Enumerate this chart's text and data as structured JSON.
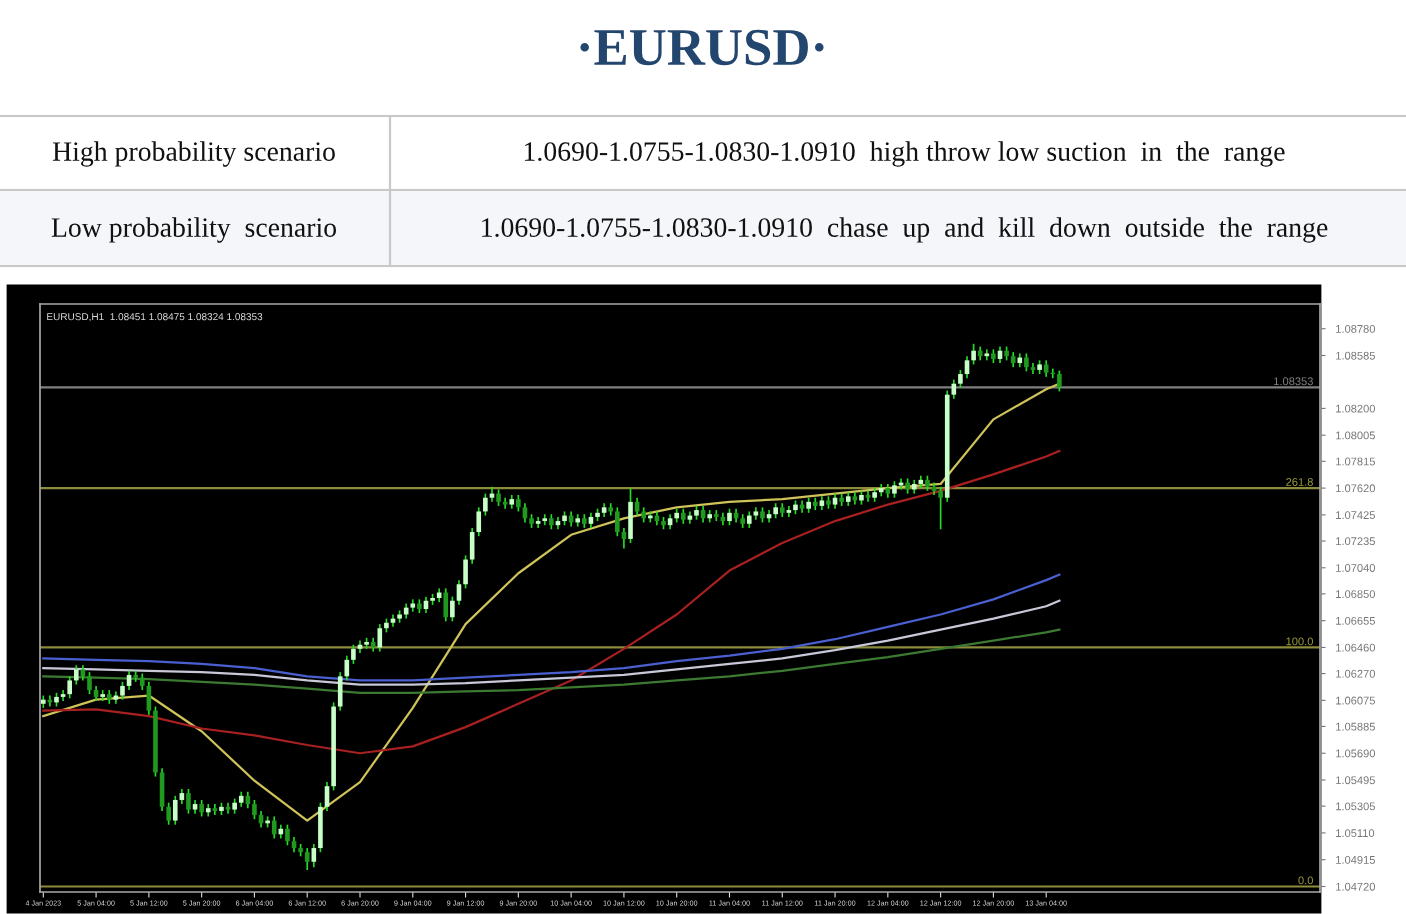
{
  "chart_data": {
    "type": "candlestick",
    "title": "·EURUSD·",
    "annotations": [
      "High probability scenario",
      "1.0690-1.0755-1.0830-1.0910  high throw low suction  in  the  range",
      "Low probability  scenario",
      "1.0690-1.0755-1.0830-1.0910  chase  up  and  kill  down  outside  the  range",
      "EURUSD,H1  1.08451 1.08475 1.08324 1.08353",
      {
        "text": "261.8",
        "y": 1.0762
      },
      {
        "text": "100.0",
        "y": 1.0646
      },
      {
        "text": "0.0",
        "y": 1.0472
      }
    ],
    "categories": [
      "4 Jan 2023",
      null,
      null,
      null,
      null,
      null,
      null,
      null,
      "5 Jan 04:00",
      null,
      null,
      null,
      null,
      null,
      null,
      null,
      "5 Jan 12:00",
      null,
      null,
      null,
      null,
      null,
      null,
      null,
      "5 Jan 20:00",
      null,
      null,
      null,
      null,
      null,
      null,
      null,
      "6 Jan 04:00",
      null,
      null,
      null,
      null,
      null,
      null,
      null,
      "6 Jan 12:00",
      null,
      null,
      null,
      null,
      null,
      null,
      null,
      "6 Jan 20:00",
      null,
      null,
      null,
      null,
      null,
      null,
      null,
      "9 Jan 04:00",
      null,
      null,
      null,
      null,
      null,
      null,
      null,
      "9 Jan 12:00",
      null,
      null,
      null,
      null,
      null,
      null,
      null,
      "9 Jan 20:00",
      null,
      null,
      null,
      null,
      null,
      null,
      null,
      "10 Jan 04:00",
      null,
      null,
      null,
      null,
      null,
      null,
      null,
      "10 Jan 12:00",
      null,
      null,
      null,
      null,
      null,
      null,
      null,
      "10 Jan 20:00",
      null,
      null,
      null,
      null,
      null,
      null,
      null,
      "11 Jan 04:00",
      null,
      null,
      null,
      null,
      null,
      null,
      null,
      "11 Jan 12:00",
      null,
      null,
      null,
      null,
      null,
      null,
      null,
      "11 Jan 20:00",
      null,
      null,
      null,
      null,
      null,
      null,
      null,
      "12 Jan 04:00",
      null,
      null,
      null,
      null,
      null,
      null,
      null,
      "12 Jan 12:00",
      null,
      null,
      null,
      null,
      null,
      null,
      null,
      "12 Jan 20:00",
      null,
      null,
      null,
      null,
      null,
      null,
      null,
      "13 Jan 04:00",
      null,
      null,
      null,
      null,
      null,
      null,
      null,
      null,
      null,
      null,
      null,
      null,
      null,
      null,
      null,
      null,
      null,
      null,
      null,
      null,
      null,
      null,
      null,
      null,
      null,
      null,
      null,
      null,
      null,
      null,
      null,
      null,
      null,
      null,
      null,
      null,
      null,
      null,
      null,
      null,
      null
    ],
    "ohlc": [
      [
        1.0605,
        1.0611,
        1.0602,
        1.0608
      ],
      [
        1.0608,
        1.0611,
        1.0603,
        1.0606
      ],
      [
        1.0606,
        1.0613,
        1.0603,
        1.061
      ],
      [
        1.061,
        1.0615,
        1.0607,
        1.0612
      ],
      [
        1.0612,
        1.0625,
        1.0609,
        1.0622
      ],
      [
        1.0622,
        1.0633,
        1.0619,
        1.063
      ],
      [
        1.063,
        1.0633,
        1.0622,
        1.0625
      ],
      [
        1.0625,
        1.0628,
        1.0612,
        1.0615
      ],
      [
        1.0615,
        1.0618,
        1.0607,
        1.061
      ],
      [
        1.061,
        1.0615,
        1.0607,
        1.0612
      ],
      [
        1.0612,
        1.0615,
        1.0605,
        1.0608
      ],
      [
        1.0608,
        1.0614,
        1.0605,
        1.0611
      ],
      [
        1.0611,
        1.0621,
        1.0608,
        1.0618
      ],
      [
        1.0618,
        1.0629,
        1.0615,
        1.0626
      ],
      [
        1.0626,
        1.0629,
        1.0621,
        1.0624
      ],
      [
        1.0624,
        1.0627,
        1.0615,
        1.0618
      ],
      [
        1.0618,
        1.0621,
        1.0597,
        1.06
      ],
      [
        1.06,
        1.0603,
        1.0552,
        1.0555
      ],
      [
        1.0555,
        1.0558,
        1.0527,
        1.053
      ],
      [
        1.053,
        1.0533,
        1.0517,
        1.052
      ],
      [
        1.052,
        1.0538,
        1.0517,
        1.0535
      ],
      [
        1.0535,
        1.0543,
        1.0532,
        1.054
      ],
      [
        1.054,
        1.0543,
        1.0525,
        1.0528
      ],
      [
        1.0528,
        1.0535,
        1.0525,
        1.0532
      ],
      [
        1.0532,
        1.0535,
        1.0523,
        1.0526
      ],
      [
        1.0526,
        1.0532,
        1.0523,
        1.0529
      ],
      [
        1.0529,
        1.0532,
        1.0524,
        1.0527
      ],
      [
        1.0527,
        1.0533,
        1.0524,
        1.053
      ],
      [
        1.053,
        1.0533,
        1.0525,
        1.0528
      ],
      [
        1.0528,
        1.0536,
        1.0525,
        1.0533
      ],
      [
        1.0533,
        1.0541,
        1.053,
        1.0538
      ],
      [
        1.0538,
        1.0541,
        1.0529,
        1.0532
      ],
      [
        1.0532,
        1.0535,
        1.0521,
        1.0524
      ],
      [
        1.0524,
        1.0527,
        1.0515,
        1.0518
      ],
      [
        1.0518,
        1.0523,
        1.0515,
        1.052
      ],
      [
        1.052,
        1.0523,
        1.0507,
        1.051
      ],
      [
        1.051,
        1.0517,
        1.0507,
        1.0514
      ],
      [
        1.0514,
        1.0517,
        1.0502,
        1.0505
      ],
      [
        1.0505,
        1.0508,
        1.0497,
        1.05
      ],
      [
        1.05,
        1.0503,
        1.0494,
        1.0497
      ],
      [
        1.0497,
        1.05,
        1.0484,
        1.049
      ],
      [
        1.049,
        1.0503,
        1.0486,
        1.05
      ],
      [
        1.05,
        1.0533,
        1.0497,
        1.053
      ],
      [
        1.053,
        1.0548,
        1.0527,
        1.0545
      ],
      [
        1.0545,
        1.0606,
        1.0542,
        1.0603
      ],
      [
        1.0603,
        1.0628,
        1.06,
        1.0625
      ],
      [
        1.0625,
        1.064,
        1.0622,
        1.0637
      ],
      [
        1.0637,
        1.0648,
        1.0634,
        1.0645
      ],
      [
        1.0645,
        1.0651,
        1.0642,
        1.0648
      ],
      [
        1.0648,
        1.0653,
        1.0645,
        1.065
      ],
      [
        1.065,
        1.0653,
        1.0643,
        1.0646
      ],
      [
        1.0646,
        1.0663,
        1.0643,
        1.066
      ],
      [
        1.066,
        1.0667,
        1.0657,
        1.0664
      ],
      [
        1.0664,
        1.067,
        1.0661,
        1.0667
      ],
      [
        1.0667,
        1.0673,
        1.0664,
        1.067
      ],
      [
        1.067,
        1.0678,
        1.0667,
        1.0675
      ],
      [
        1.0675,
        1.0681,
        1.0672,
        1.0678
      ],
      [
        1.0678,
        1.0681,
        1.0671,
        1.0674
      ],
      [
        1.0674,
        1.0683,
        1.0671,
        1.068
      ],
      [
        1.068,
        1.0685,
        1.0677,
        1.0682
      ],
      [
        1.0682,
        1.0689,
        1.0679,
        1.0686
      ],
      [
        1.0686,
        1.0689,
        1.0665,
        1.0668
      ],
      [
        1.0668,
        1.0683,
        1.0665,
        1.068
      ],
      [
        1.068,
        1.0695,
        1.0677,
        1.0692
      ],
      [
        1.0692,
        1.0713,
        1.0689,
        1.071
      ],
      [
        1.071,
        1.0733,
        1.0707,
        1.073
      ],
      [
        1.073,
        1.0748,
        1.0727,
        1.0745
      ],
      [
        1.0745,
        1.0758,
        1.0742,
        1.0755
      ],
      [
        1.0755,
        1.0763,
        1.0752,
        1.0758
      ],
      [
        1.0758,
        1.0761,
        1.0749,
        1.0752
      ],
      [
        1.0752,
        1.0755,
        1.0747,
        1.075
      ],
      [
        1.075,
        1.0757,
        1.0747,
        1.0754
      ],
      [
        1.0754,
        1.0757,
        1.0745,
        1.0748
      ],
      [
        1.0748,
        1.0751,
        1.0737,
        1.074
      ],
      [
        1.074,
        1.0743,
        1.0733,
        1.0736
      ],
      [
        1.0736,
        1.0741,
        1.0733,
        1.0738
      ],
      [
        1.0738,
        1.0743,
        1.0735,
        1.074
      ],
      [
        1.074,
        1.0743,
        1.0732,
        1.0735
      ],
      [
        1.0735,
        1.0741,
        1.0732,
        1.0738
      ],
      [
        1.0738,
        1.0745,
        1.0735,
        1.0742
      ],
      [
        1.0742,
        1.0745,
        1.0734,
        1.0737
      ],
      [
        1.0737,
        1.0743,
        1.0734,
        1.074
      ],
      [
        1.074,
        1.0743,
        1.0733,
        1.0736
      ],
      [
        1.0736,
        1.0744,
        1.0733,
        1.0741
      ],
      [
        1.0741,
        1.0747,
        1.0738,
        1.0744
      ],
      [
        1.0744,
        1.0751,
        1.0741,
        1.0748
      ],
      [
        1.0748,
        1.0751,
        1.0742,
        1.0745
      ],
      [
        1.0745,
        1.0748,
        1.0727,
        1.073
      ],
      [
        1.073,
        1.0733,
        1.0718,
        1.0725
      ],
      [
        1.0725,
        1.0762,
        1.0722,
        1.0752
      ],
      [
        1.0752,
        1.0755,
        1.0742,
        1.0745
      ],
      [
        1.0745,
        1.0748,
        1.0737,
        1.074
      ],
      [
        1.074,
        1.0745,
        1.0737,
        1.0742
      ],
      [
        1.0742,
        1.0745,
        1.0735,
        1.0738
      ],
      [
        1.0738,
        1.0741,
        1.0732,
        1.0735
      ],
      [
        1.0735,
        1.0743,
        1.0732,
        1.074
      ],
      [
        1.074,
        1.0747,
        1.0737,
        1.0744
      ],
      [
        1.0744,
        1.0747,
        1.0736,
        1.0739
      ],
      [
        1.0739,
        1.0745,
        1.0736,
        1.0742
      ],
      [
        1.0742,
        1.0749,
        1.0739,
        1.0746
      ],
      [
        1.0746,
        1.0749,
        1.0737,
        1.074
      ],
      [
        1.074,
        1.0746,
        1.0737,
        1.0743
      ],
      [
        1.0743,
        1.0746,
        1.0738,
        1.0741
      ],
      [
        1.0741,
        1.0744,
        1.0735,
        1.0738
      ],
      [
        1.0738,
        1.0747,
        1.0735,
        1.0744
      ],
      [
        1.0744,
        1.0747,
        1.0737,
        1.074
      ],
      [
        1.074,
        1.0743,
        1.0733,
        1.0736
      ],
      [
        1.0736,
        1.0745,
        1.0733,
        1.0742
      ],
      [
        1.0742,
        1.0748,
        1.0739,
        1.0745
      ],
      [
        1.0745,
        1.0748,
        1.0737,
        1.074
      ],
      [
        1.074,
        1.0746,
        1.0737,
        1.0743
      ],
      [
        1.0743,
        1.0751,
        1.074,
        1.0748
      ],
      [
        1.0748,
        1.0751,
        1.0741,
        1.0744
      ],
      [
        1.0744,
        1.0749,
        1.0741,
        1.0746
      ],
      [
        1.0746,
        1.0753,
        1.0743,
        1.075
      ],
      [
        1.075,
        1.0753,
        1.0744,
        1.0747
      ],
      [
        1.0747,
        1.0755,
        1.0744,
        1.0752
      ],
      [
        1.0752,
        1.0755,
        1.0746,
        1.0749
      ],
      [
        1.0749,
        1.0756,
        1.0746,
        1.0753
      ],
      [
        1.0753,
        1.0756,
        1.0747,
        1.075
      ],
      [
        1.075,
        1.0758,
        1.0747,
        1.0755
      ],
      [
        1.0755,
        1.0758,
        1.0749,
        1.0752
      ],
      [
        1.0752,
        1.0759,
        1.0749,
        1.0756
      ],
      [
        1.0756,
        1.0759,
        1.075,
        1.0753
      ],
      [
        1.0753,
        1.076,
        1.075,
        1.0757
      ],
      [
        1.0757,
        1.076,
        1.0752,
        1.0755
      ],
      [
        1.0755,
        1.0762,
        1.0752,
        1.0759
      ],
      [
        1.0759,
        1.0765,
        1.0756,
        1.0762
      ],
      [
        1.0762,
        1.0765,
        1.0755,
        1.0758
      ],
      [
        1.0758,
        1.0767,
        1.0755,
        1.0764
      ],
      [
        1.0764,
        1.0769,
        1.0761,
        1.0766
      ],
      [
        1.0766,
        1.0769,
        1.0758,
        1.0761
      ],
      [
        1.0761,
        1.0768,
        1.0758,
        1.0765
      ],
      [
        1.0765,
        1.0771,
        1.0762,
        1.0768
      ],
      [
        1.0768,
        1.0771,
        1.076,
        1.0763
      ],
      [
        1.0763,
        1.0766,
        1.0757,
        1.076
      ],
      [
        1.076,
        1.0763,
        1.0732,
        1.0755
      ],
      [
        1.0755,
        1.0833,
        1.0752,
        1.083
      ],
      [
        1.083,
        1.0841,
        1.0827,
        1.0838
      ],
      [
        1.0838,
        1.0848,
        1.0835,
        1.0845
      ],
      [
        1.0845,
        1.0858,
        1.0842,
        1.0855
      ],
      [
        1.0855,
        1.0867,
        1.0852,
        1.0862
      ],
      [
        1.0862,
        1.0865,
        1.0855,
        1.0858
      ],
      [
        1.0858,
        1.0863,
        1.0855,
        1.086
      ],
      [
        1.086,
        1.0863,
        1.0853,
        1.0856
      ],
      [
        1.0856,
        1.0865,
        1.0853,
        1.0862
      ],
      [
        1.0862,
        1.0865,
        1.0855,
        1.0858
      ],
      [
        1.0858,
        1.0861,
        1.085,
        1.0853
      ],
      [
        1.0853,
        1.086,
        1.085,
        1.0857
      ],
      [
        1.0857,
        1.086,
        1.0847,
        1.085
      ],
      [
        1.085,
        1.0853,
        1.0845,
        1.0848
      ],
      [
        1.0848,
        1.0855,
        1.0845,
        1.0852
      ],
      [
        1.0852,
        1.0855,
        1.0843,
        1.0846
      ],
      [
        1.0846,
        1.0849,
        1.0842,
        1.0845
      ],
      [
        1.08451,
        1.08475,
        1.08324,
        1.08353
      ],
      null,
      null,
      null,
      null,
      null,
      null,
      null,
      null,
      null,
      null,
      null,
      null,
      null,
      null,
      null,
      null,
      null,
      null,
      null,
      null,
      null,
      null,
      null,
      null,
      null,
      null,
      null,
      null,
      null,
      null,
      null,
      null,
      null,
      null,
      null,
      null,
      null,
      null,
      null
    ],
    "series": [
      {
        "type": "line",
        "color": "#cfc35a",
        "values": [
          1.0596,
          null,
          null,
          null,
          null,
          null,
          null,
          null,
          1.0608,
          null,
          null,
          null,
          null,
          null,
          null,
          null,
          1.0611,
          null,
          null,
          null,
          null,
          null,
          null,
          null,
          1.0585,
          null,
          null,
          null,
          null,
          null,
          null,
          null,
          1.0549,
          null,
          null,
          null,
          null,
          null,
          null,
          null,
          1.052,
          null,
          null,
          null,
          null,
          null,
          null,
          null,
          1.0548,
          null,
          null,
          null,
          null,
          null,
          null,
          null,
          1.0602,
          null,
          null,
          null,
          null,
          null,
          null,
          null,
          1.0663,
          null,
          null,
          null,
          null,
          null,
          null,
          null,
          1.07,
          null,
          null,
          null,
          null,
          null,
          null,
          null,
          1.0728,
          null,
          null,
          null,
          null,
          null,
          null,
          null,
          1.074,
          null,
          null,
          null,
          null,
          null,
          null,
          null,
          1.0748,
          null,
          null,
          null,
          null,
          null,
          null,
          null,
          1.0752,
          null,
          null,
          null,
          null,
          null,
          null,
          null,
          1.0754,
          null,
          null,
          null,
          null,
          null,
          null,
          null,
          1.0758,
          null,
          null,
          null,
          null,
          null,
          null,
          null,
          1.0762,
          null,
          null,
          null,
          null,
          null,
          null,
          null,
          1.0765,
          null,
          null,
          null,
          null,
          null,
          null,
          null,
          1.0812,
          null,
          null,
          null,
          null,
          null,
          null,
          null,
          1.0834,
          null,
          1.0838,
          null,
          null,
          null,
          null,
          null,
          null,
          null,
          null,
          null,
          null,
          null,
          null,
          null,
          null,
          null,
          null,
          null,
          null,
          null,
          null,
          null,
          null,
          null,
          null,
          null,
          null,
          null,
          null,
          null,
          null,
          null,
          null,
          null,
          null,
          null,
          null,
          null,
          null,
          null
        ]
      },
      {
        "type": "line",
        "color": "#a82020",
        "values": [
          1.06,
          null,
          null,
          null,
          null,
          null,
          null,
          null,
          1.0601,
          null,
          null,
          null,
          null,
          null,
          null,
          null,
          1.0596,
          null,
          null,
          null,
          null,
          null,
          null,
          null,
          1.0587,
          null,
          null,
          null,
          null,
          null,
          null,
          null,
          1.0582,
          null,
          null,
          null,
          null,
          null,
          null,
          null,
          1.0575,
          null,
          null,
          null,
          null,
          null,
          null,
          null,
          1.0569,
          null,
          null,
          null,
          null,
          null,
          null,
          null,
          1.0574,
          null,
          null,
          null,
          null,
          null,
          null,
          null,
          1.0588,
          null,
          null,
          null,
          null,
          null,
          null,
          null,
          1.0605,
          null,
          null,
          null,
          null,
          null,
          null,
          null,
          1.0622,
          null,
          null,
          null,
          null,
          null,
          null,
          null,
          1.0645,
          null,
          null,
          null,
          null,
          null,
          null,
          null,
          1.067,
          null,
          null,
          null,
          null,
          null,
          null,
          null,
          1.0702,
          null,
          null,
          null,
          null,
          null,
          null,
          null,
          1.0722,
          null,
          null,
          null,
          null,
          null,
          null,
          null,
          1.0738,
          null,
          null,
          null,
          null,
          null,
          null,
          null,
          1.075,
          null,
          null,
          null,
          null,
          null,
          null,
          null,
          1.076,
          null,
          null,
          null,
          null,
          null,
          null,
          null,
          1.0772,
          null,
          null,
          null,
          null,
          null,
          null,
          null,
          1.0785,
          null,
          1.0789,
          null,
          null,
          null,
          null,
          null,
          null,
          null,
          null,
          null,
          null,
          null,
          null,
          null,
          null,
          null,
          null,
          null,
          null,
          null,
          null,
          null,
          null,
          null,
          null,
          null,
          null,
          null,
          null,
          null,
          null,
          null,
          null,
          null,
          null,
          null,
          null,
          null,
          null,
          null
        ]
      },
      {
        "type": "line",
        "color": "#4a5fd0",
        "values": [
          1.0638,
          null,
          null,
          null,
          null,
          null,
          null,
          null,
          1.0637,
          null,
          null,
          null,
          null,
          null,
          null,
          null,
          1.0636,
          null,
          null,
          null,
          null,
          null,
          null,
          null,
          1.0634,
          null,
          null,
          null,
          null,
          null,
          null,
          null,
          1.0631,
          null,
          null,
          null,
          null,
          null,
          null,
          null,
          1.0625,
          null,
          null,
          null,
          null,
          null,
          null,
          null,
          1.0622,
          null,
          null,
          null,
          null,
          null,
          null,
          null,
          1.0622,
          null,
          null,
          null,
          null,
          null,
          null,
          null,
          1.0624,
          null,
          null,
          null,
          null,
          null,
          null,
          null,
          1.0626,
          null,
          null,
          null,
          null,
          null,
          null,
          null,
          1.0628,
          null,
          null,
          null,
          null,
          null,
          null,
          null,
          1.0631,
          null,
          null,
          null,
          null,
          null,
          null,
          null,
          1.0636,
          null,
          null,
          null,
          null,
          null,
          null,
          null,
          1.064,
          null,
          null,
          null,
          null,
          null,
          null,
          null,
          1.0645,
          null,
          null,
          null,
          null,
          null,
          null,
          null,
          1.0652,
          null,
          null,
          null,
          null,
          null,
          null,
          null,
          1.0661,
          null,
          null,
          null,
          null,
          null,
          null,
          null,
          1.067,
          null,
          null,
          null,
          null,
          null,
          null,
          null,
          1.0681,
          null,
          null,
          null,
          null,
          null,
          null,
          null,
          1.0695,
          null,
          1.0699,
          null,
          null,
          null,
          null,
          null,
          null,
          null,
          null,
          null,
          null,
          null,
          null,
          null,
          null,
          null,
          null,
          null,
          null,
          null,
          null,
          null,
          null,
          null,
          null,
          null,
          null,
          null,
          null,
          null,
          null,
          null,
          null,
          null,
          null,
          null,
          null,
          null,
          null,
          null
        ]
      },
      {
        "type": "line",
        "color": "#c8c8d8",
        "values": [
          1.0631,
          null,
          null,
          null,
          null,
          null,
          null,
          null,
          1.063,
          null,
          null,
          null,
          null,
          null,
          null,
          null,
          1.0629,
          null,
          null,
          null,
          null,
          null,
          null,
          null,
          1.0628,
          null,
          null,
          null,
          null,
          null,
          null,
          null,
          1.0626,
          null,
          null,
          null,
          null,
          null,
          null,
          null,
          1.0622,
          null,
          null,
          null,
          null,
          null,
          null,
          null,
          1.0619,
          null,
          null,
          null,
          null,
          null,
          null,
          null,
          1.0619,
          null,
          null,
          null,
          null,
          null,
          null,
          null,
          1.062,
          null,
          null,
          null,
          null,
          null,
          null,
          null,
          1.0622,
          null,
          null,
          null,
          null,
          null,
          null,
          null,
          1.0624,
          null,
          null,
          null,
          null,
          null,
          null,
          null,
          1.0626,
          null,
          null,
          null,
          null,
          null,
          null,
          null,
          1.063,
          null,
          null,
          null,
          null,
          null,
          null,
          null,
          1.0634,
          null,
          null,
          null,
          null,
          null,
          null,
          null,
          1.0638,
          null,
          null,
          null,
          null,
          null,
          null,
          null,
          1.0644,
          null,
          null,
          null,
          null,
          null,
          null,
          null,
          1.0651,
          null,
          null,
          null,
          null,
          null,
          null,
          null,
          1.0659,
          null,
          null,
          null,
          null,
          null,
          null,
          null,
          1.0667,
          null,
          null,
          null,
          null,
          null,
          null,
          null,
          1.0676,
          null,
          1.068,
          null,
          null,
          null,
          null,
          null,
          null,
          null,
          null,
          null,
          null,
          null,
          null,
          null,
          null,
          null,
          null,
          null,
          null,
          null,
          null,
          null,
          null,
          null,
          null,
          null,
          null,
          null,
          null,
          null,
          null,
          null,
          null,
          null,
          null,
          null,
          null,
          null,
          null,
          null
        ]
      },
      {
        "type": "line",
        "color": "#3c7a32",
        "values": [
          1.0625,
          null,
          null,
          null,
          null,
          null,
          null,
          null,
          1.0624,
          null,
          null,
          null,
          null,
          null,
          null,
          null,
          1.0623,
          null,
          null,
          null,
          null,
          null,
          null,
          null,
          1.0621,
          null,
          null,
          null,
          null,
          null,
          null,
          null,
          1.0619,
          null,
          null,
          null,
          null,
          null,
          null,
          null,
          1.0616,
          null,
          null,
          null,
          null,
          null,
          null,
          null,
          1.0613,
          null,
          null,
          null,
          null,
          null,
          null,
          null,
          1.0613,
          null,
          null,
          null,
          null,
          null,
          null,
          null,
          1.0614,
          null,
          null,
          null,
          null,
          null,
          null,
          null,
          1.0615,
          null,
          null,
          null,
          null,
          null,
          null,
          null,
          1.0617,
          null,
          null,
          null,
          null,
          null,
          null,
          null,
          1.0619,
          null,
          null,
          null,
          null,
          null,
          null,
          null,
          1.0622,
          null,
          null,
          null,
          null,
          null,
          null,
          null,
          1.0625,
          null,
          null,
          null,
          null,
          null,
          null,
          null,
          1.0629,
          null,
          null,
          null,
          null,
          null,
          null,
          null,
          1.0634,
          null,
          null,
          null,
          null,
          null,
          null,
          null,
          1.0639,
          null,
          null,
          null,
          null,
          null,
          null,
          null,
          1.0645,
          null,
          null,
          null,
          null,
          null,
          null,
          null,
          1.0651,
          null,
          null,
          null,
          null,
          null,
          null,
          null,
          1.0657,
          null,
          1.0659,
          null,
          null,
          null,
          null,
          null,
          null,
          null,
          null,
          null,
          null,
          null,
          null,
          null,
          null,
          null,
          null,
          null,
          null,
          null,
          null,
          null,
          null,
          null,
          null,
          null,
          null,
          null,
          null,
          null,
          null,
          null,
          null,
          null,
          null,
          null,
          null,
          null,
          null,
          null
        ]
      }
    ],
    "ref_lines": [
      {
        "axis": "y",
        "value": 1.0762,
        "color": "#8c8c3c"
      },
      {
        "axis": "y",
        "value": 1.0646,
        "color": "#8c8c3c"
      },
      {
        "axis": "y",
        "value": 1.0472,
        "color": "#8c8c3c"
      },
      {
        "axis": "y",
        "value": 1.08353,
        "label": "1.08353",
        "color": "#808080"
      }
    ],
    "ylim": [
      1.0468,
      1.0896
    ],
    "yticks": [
      {
        "value": 1.0878,
        "label": "1.08780"
      },
      {
        "value": 1.08585,
        "label": "1.08585"
      },
      {
        "value": 1.082,
        "label": "1.08200"
      },
      {
        "value": 1.08005,
        "label": "1.08005"
      },
      {
        "value": 1.07815,
        "label": "1.07815"
      },
      {
        "value": 1.0762,
        "label": "1.07620"
      },
      {
        "value": 1.07425,
        "label": "1.07425"
      },
      {
        "value": 1.07235,
        "label": "1.07235"
      },
      {
        "value": 1.0704,
        "label": "1.07040"
      },
      {
        "value": 1.0685,
        "label": "1.06850"
      },
      {
        "value": 1.06655,
        "label": "1.06655"
      },
      {
        "value": 1.0646,
        "label": "1.06460"
      },
      {
        "value": 1.0627,
        "label": "1.06270"
      },
      {
        "value": 1.06075,
        "label": "1.06075"
      },
      {
        "value": 1.05885,
        "label": "1.05885"
      },
      {
        "value": 1.0569,
        "label": "1.05690"
      },
      {
        "value": 1.05495,
        "label": "1.05495"
      },
      {
        "value": 1.05305,
        "label": "1.05305"
      },
      {
        "value": 1.0511,
        "label": "1.05110"
      },
      {
        "value": 1.04915,
        "label": "1.04915"
      },
      {
        "value": 1.0472,
        "label": "1.04720"
      }
    ],
    "grid": false,
    "legend": false
  }
}
